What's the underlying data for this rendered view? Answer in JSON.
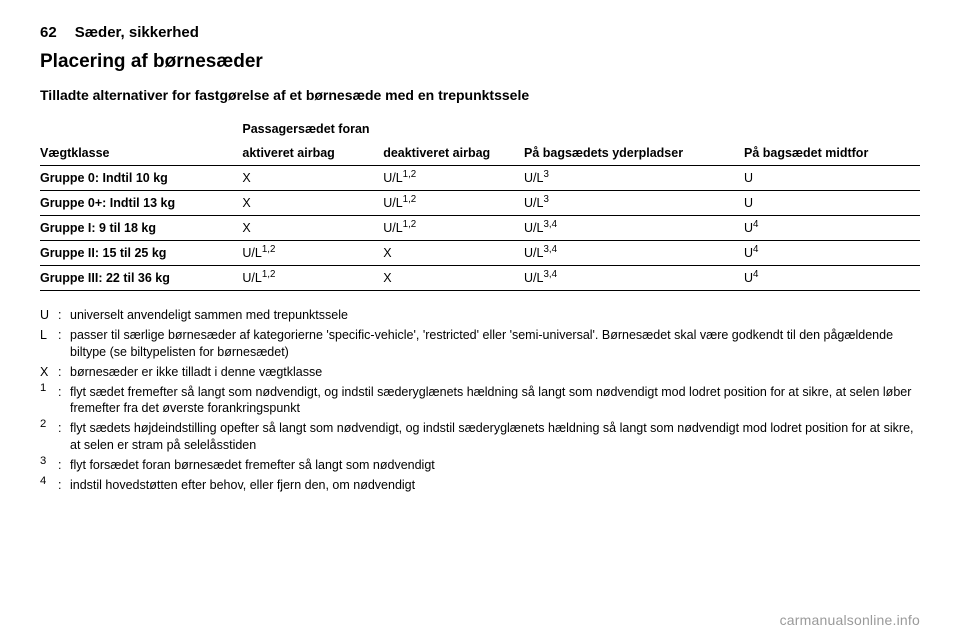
{
  "page": {
    "number": "62",
    "chapter": "Sæder, sikkerhed",
    "title": "Placering af børnesæder",
    "subtitle": "Tilladte alternativer for fastgørelse af et børnesæde med en trepunktssele"
  },
  "table": {
    "group_header": "Passagersædet foran",
    "columns": {
      "weight": "Vægtklasse",
      "airbag_on": "aktiveret airbag",
      "airbag_off": "deaktiveret airbag",
      "rear_outer": "På bagsædets yderpladser",
      "rear_center": "På bagsædet midtfor"
    },
    "rows": [
      {
        "weight": "Gruppe 0: Indtil 10 kg",
        "airbag_on": "X",
        "airbag_off": {
          "v": "U/L",
          "s": "1,2"
        },
        "rear_outer": {
          "v": "U/L",
          "s": "3"
        },
        "rear_center": "U"
      },
      {
        "weight": "Gruppe 0+: Indtil 13 kg",
        "airbag_on": "X",
        "airbag_off": {
          "v": "U/L",
          "s": "1,2"
        },
        "rear_outer": {
          "v": "U/L",
          "s": "3"
        },
        "rear_center": "U"
      },
      {
        "weight": "Gruppe I: 9 til 18 kg",
        "airbag_on": "X",
        "airbag_off": {
          "v": "U/L",
          "s": "1,2"
        },
        "rear_outer": {
          "v": "U/L",
          "s": "3,4"
        },
        "rear_center": {
          "v": "U",
          "s": "4"
        }
      },
      {
        "weight": "Gruppe II: 15 til 25 kg",
        "airbag_on": {
          "v": "U/L",
          "s": "1,2"
        },
        "airbag_off": "X",
        "rear_outer": {
          "v": "U/L",
          "s": "3,4"
        },
        "rear_center": {
          "v": "U",
          "s": "4"
        }
      },
      {
        "weight": "Gruppe III: 22 til 36 kg",
        "airbag_on": {
          "v": "U/L",
          "s": "1,2"
        },
        "airbag_off": "X",
        "rear_outer": {
          "v": "U/L",
          "s": "3,4"
        },
        "rear_center": {
          "v": "U",
          "s": "4"
        }
      }
    ]
  },
  "legend": [
    {
      "k": "U",
      "c": ":",
      "v": "universelt anvendeligt sammen med trepunktssele"
    },
    {
      "k": "L",
      "c": ":",
      "v": "passer til særlige børnesæder af kategorierne 'specific-vehicle', 'restricted' eller 'semi-universal'. Børnesædet skal være godkendt til den pågældende biltype (se biltypelisten for børnesædet)"
    },
    {
      "k": "X",
      "c": ":",
      "v": "børnesæder er ikke tilladt i denne vægtklasse"
    },
    {
      "k": "1",
      "sup": true,
      "c": ":",
      "v": "flyt sædet fremefter så langt som nødvendigt, og indstil sæderyglænets hældning så langt som nødvendigt mod lodret position for at sikre, at selen løber fremefter fra det øverste forankringspunkt"
    },
    {
      "k": "2",
      "sup": true,
      "c": ":",
      "v": "flyt sædets højdeindstilling opefter så langt som nødvendigt, og indstil sæderyglænets hældning så langt som nødvendigt mod lodret position for at sikre, at selen er stram på selelåsstiden"
    },
    {
      "k": "3",
      "sup": true,
      "c": ":",
      "v": "flyt forsædet foran børnesædet fremefter så langt som nødvendigt"
    },
    {
      "k": "4",
      "sup": true,
      "c": ":",
      "v": "indstil hovedstøtten efter behov, eller fjern den, om nødvendigt"
    }
  ],
  "footer": "carmanualsonline.info"
}
